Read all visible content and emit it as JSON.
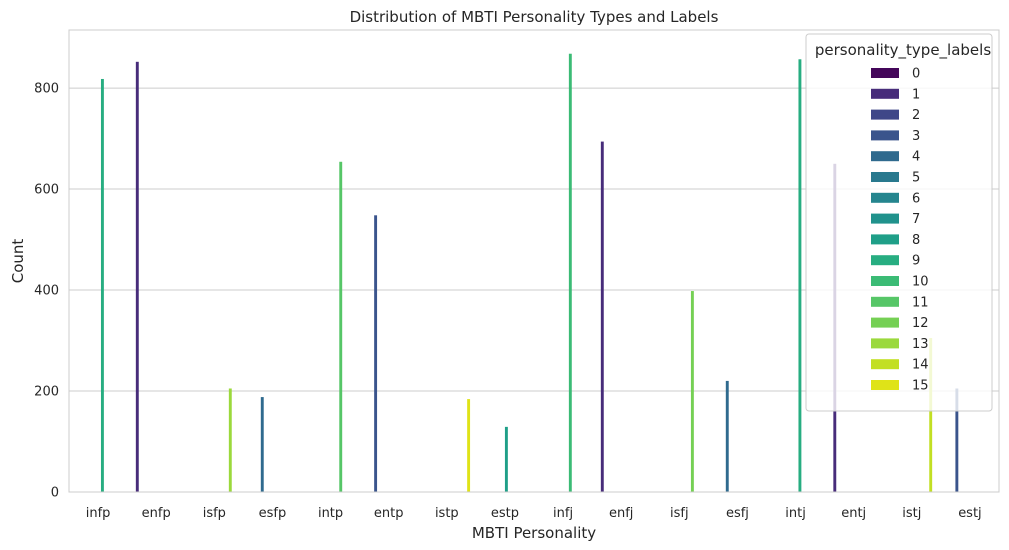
{
  "chart_data": {
    "type": "bar",
    "title": "Distribution of MBTI Personality Types and Labels",
    "xlabel": "MBTI Personality",
    "ylabel": "Count",
    "categories": [
      "infp",
      "enfp",
      "isfp",
      "esfp",
      "intp",
      "entp",
      "istp",
      "estp",
      "infj",
      "enfj",
      "isfj",
      "esfj",
      "intj",
      "entj",
      "istj",
      "estj"
    ],
    "category_labels": [
      9,
      1,
      13,
      4,
      11,
      3,
      15,
      8,
      10,
      1,
      12,
      4,
      9,
      1,
      14,
      3
    ],
    "values": [
      818,
      852,
      205,
      188,
      654,
      548,
      184,
      129,
      868,
      694,
      398,
      220,
      857,
      650,
      305,
      205
    ],
    "ylim": [
      0,
      915
    ],
    "yticks": [
      0,
      200,
      400,
      600,
      800
    ],
    "grid": true,
    "legend": {
      "title": "personality_type_labels",
      "placement": "top-right",
      "labels": [
        "0",
        "1",
        "2",
        "3",
        "4",
        "5",
        "6",
        "7",
        "8",
        "9",
        "10",
        "11",
        "12",
        "13",
        "14",
        "15"
      ]
    },
    "palette": [
      "#44065a",
      "#472c7a",
      "#3f4788",
      "#3a548c",
      "#2f6a8e",
      "#29798e",
      "#25858e",
      "#20928c",
      "#1f9f88",
      "#27ad81",
      "#3bbb75",
      "#56c667",
      "#75d054",
      "#9bd93c",
      "#c2df23",
      "#dfe318"
    ]
  }
}
